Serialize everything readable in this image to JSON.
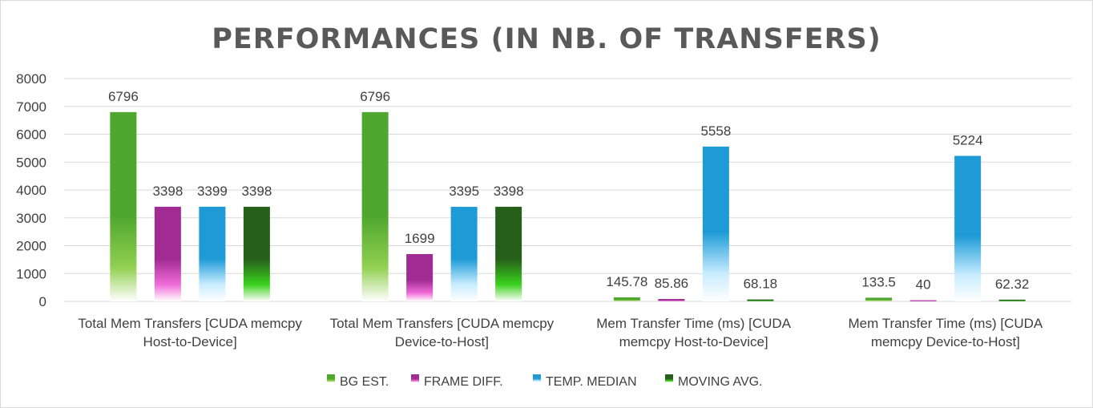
{
  "chart_data": {
    "type": "bar",
    "title": "PERFORMANCES (IN NB. OF TRANSFERS)",
    "xlabel": "",
    "ylabel": "",
    "ylim": [
      0,
      8000
    ],
    "yticks": [
      0,
      1000,
      2000,
      3000,
      4000,
      5000,
      6000,
      7000,
      8000
    ],
    "grid": true,
    "legend_position": "bottom",
    "categories": [
      [
        "Total Mem Transfers [CUDA memcpy",
        "Host-to-Device]"
      ],
      [
        "Total Mem Transfers [CUDA memcpy",
        "Device-to-Host]"
      ],
      [
        "Mem Transfer Time (ms) [CUDA",
        "memcpy Host-to-Device]"
      ],
      [
        "Mem Transfer Time (ms) [CUDA",
        "memcpy Device-to-Host]"
      ]
    ],
    "series": [
      {
        "name": "BG EST.",
        "values": [
          6796,
          6796,
          145.78,
          133.5
        ],
        "labels": [
          "6796",
          "6796",
          "145.78",
          "133.5"
        ],
        "color": "#4ea72e",
        "fade": "#92d050"
      },
      {
        "name": "FRAME DIFF.",
        "values": [
          3398,
          1699,
          85.86,
          40
        ],
        "labels": [
          "3398",
          "1699",
          "85.86",
          "40"
        ],
        "color": "#a02b93",
        "fade": "#f06ad8"
      },
      {
        "name": "TEMP. MEDIAN",
        "values": [
          3399,
          3395,
          5558,
          5224
        ],
        "labels": [
          "3399",
          "3395",
          "5558",
          "5224"
        ],
        "color": "#1e9bd7",
        "fade": "#c8ecff"
      },
      {
        "name": "MOVING AVG.",
        "values": [
          3398,
          3398,
          68.18,
          62.32
        ],
        "labels": [
          "3398",
          "3398",
          "68.18",
          "62.32"
        ],
        "color": "#265f1a",
        "fade": "#3bd11e"
      }
    ]
  }
}
